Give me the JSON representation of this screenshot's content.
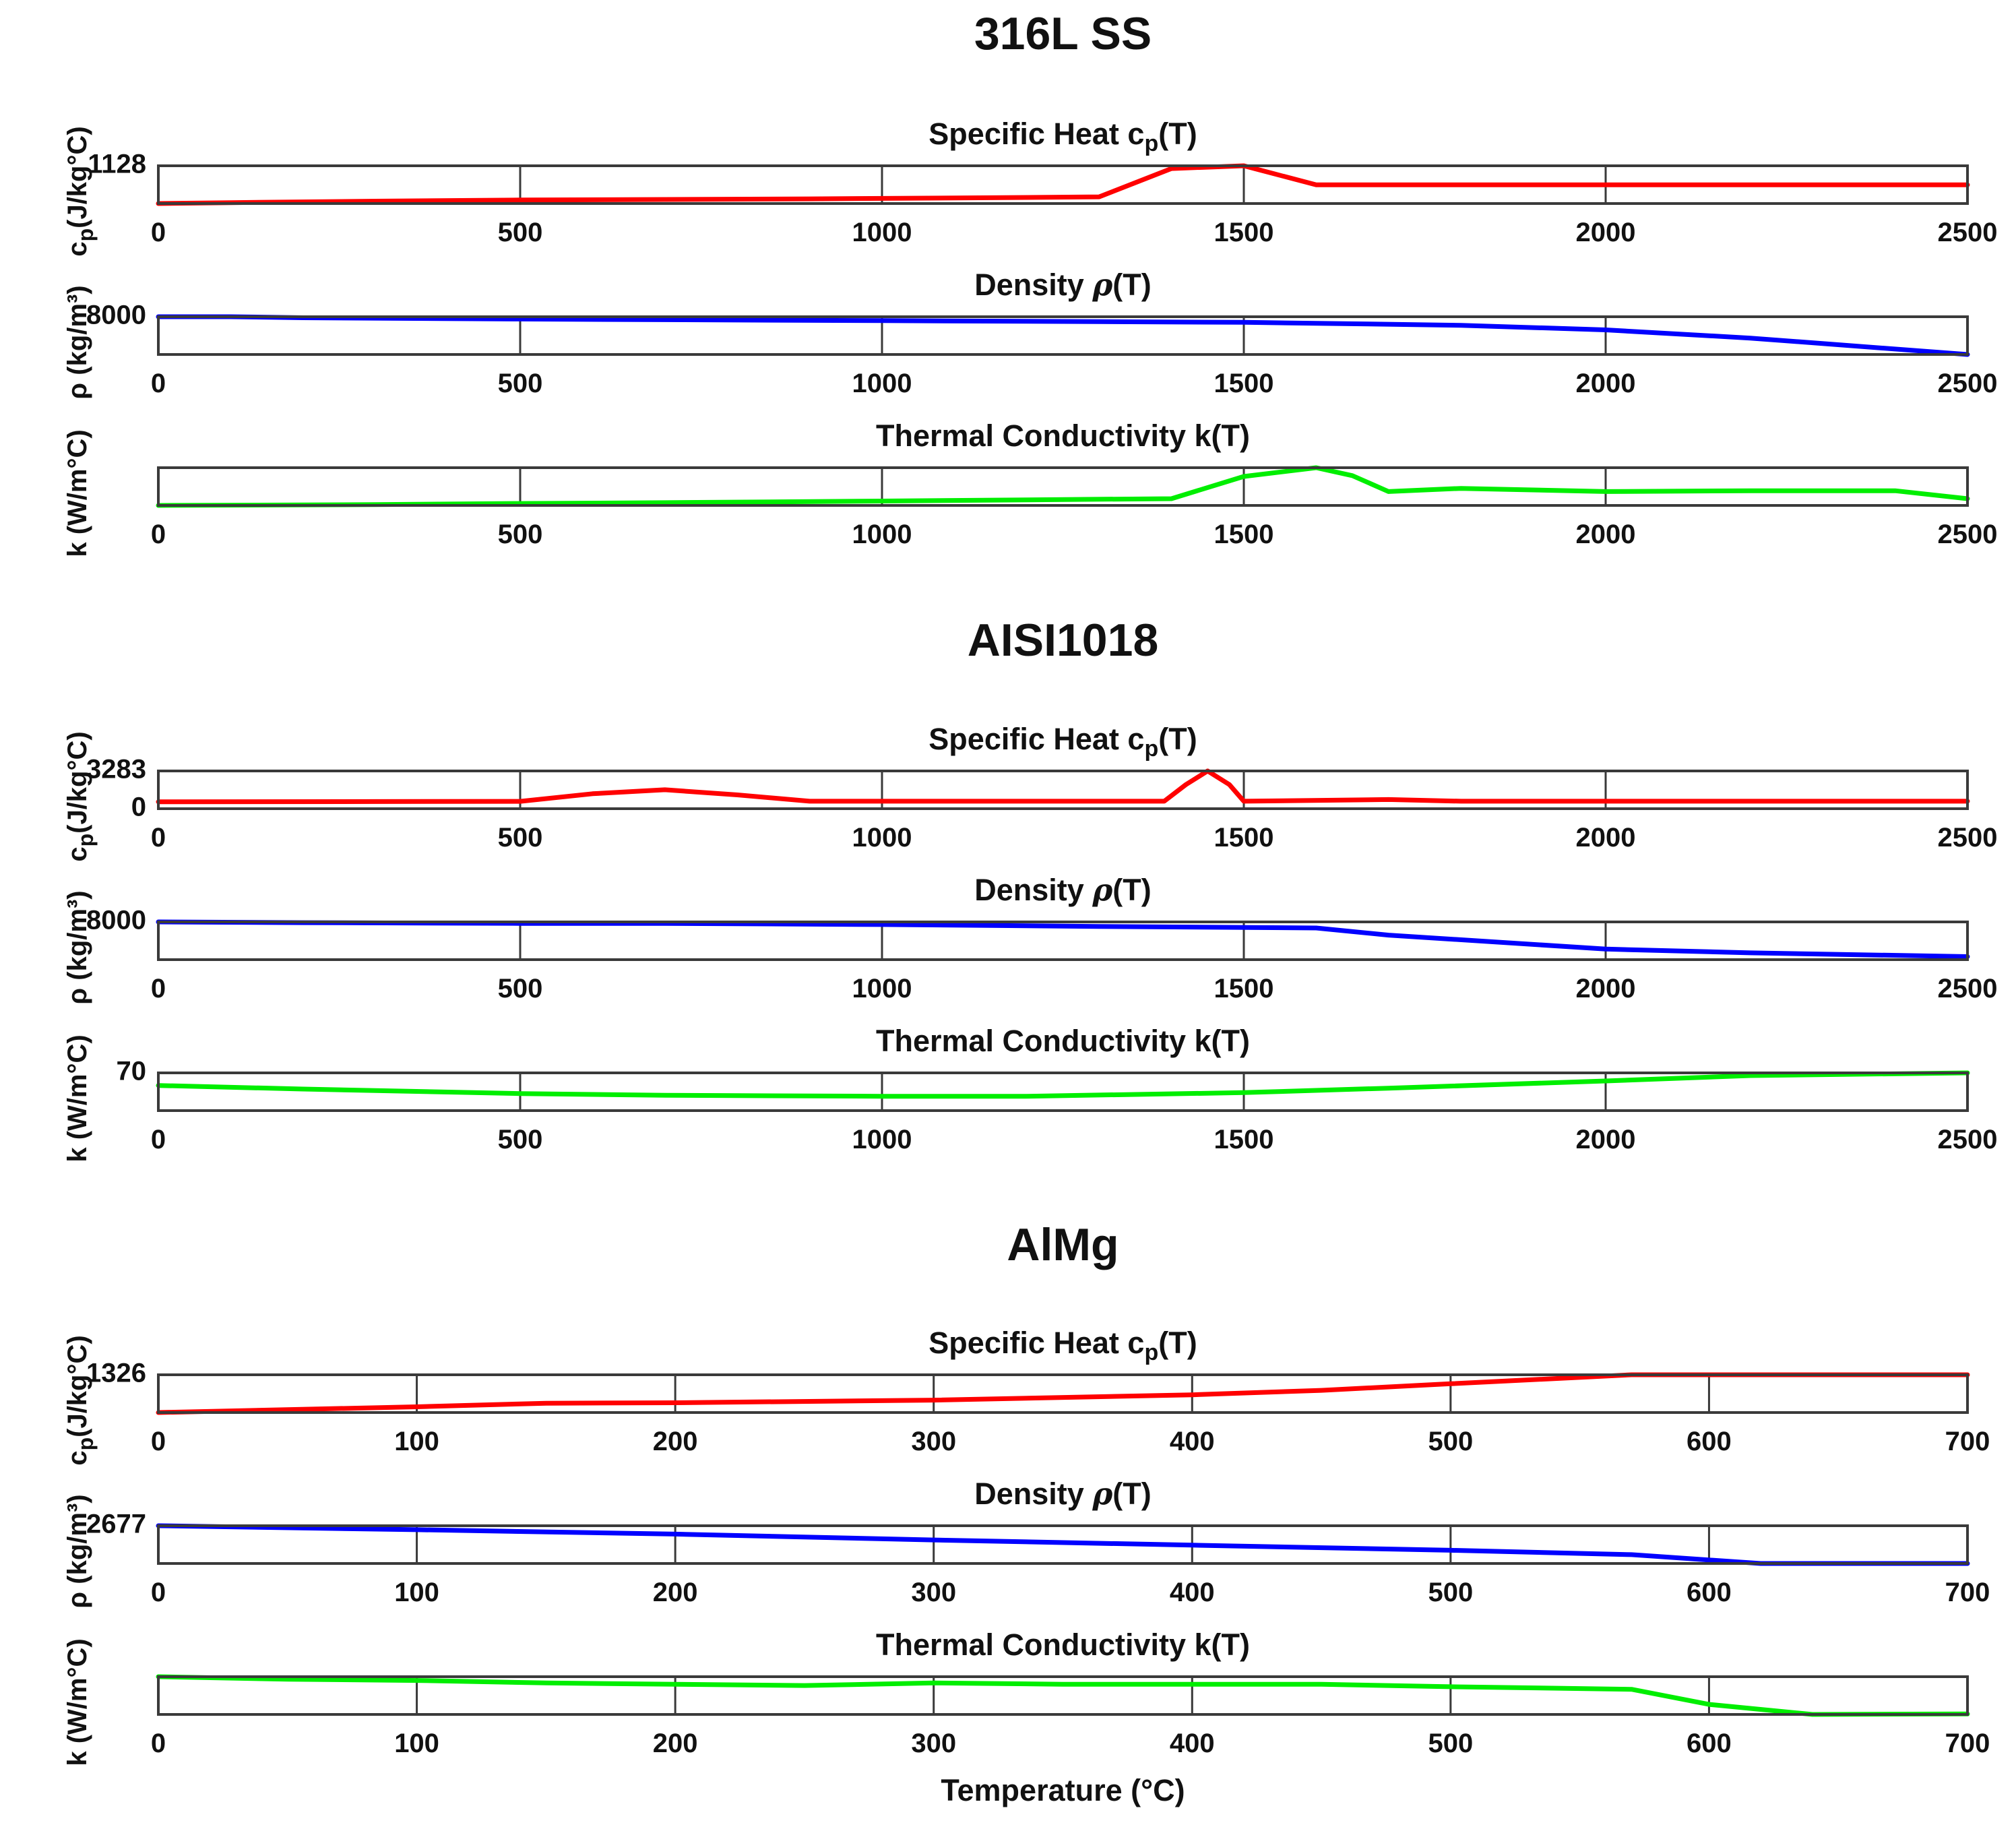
{
  "chart_data": [
    {
      "group_title": "316L SS",
      "panels": [
        {
          "type": "line",
          "title": "Specific Heat c",
          "title_sub": "p",
          "title_tail": "(T)",
          "ylabel": "c",
          "ylabel_sub": "p",
          "ylabel_tail": "(J/kg°C)",
          "xlim": [
            0,
            2500
          ],
          "ylim": [
            480,
            1128
          ],
          "xticks": [
            0,
            500,
            1000,
            1500,
            2000,
            2500
          ],
          "yticks": [
            1128
          ],
          "grid": true,
          "color": "#ff0000",
          "series": [
            {
              "name": "cp",
              "x": [
                0,
                100,
                300,
                500,
                700,
                900,
                1100,
                1300,
                1400,
                1500,
                1600,
                1700,
                1800,
                2000,
                2200,
                2500
              ],
              "y": [
                480,
                495,
                520,
                540,
                550,
                560,
                575,
                595,
                1080,
                1128,
                800,
                800,
                800,
                800,
                800,
                800
              ]
            }
          ]
        },
        {
          "type": "line",
          "title": "Density ",
          "title_sym": "ρ",
          "title_tail": "(T)",
          "ylabel": "ρ (kg/m³)",
          "xlim": [
            0,
            2500
          ],
          "ylim": [
            6850,
            8000
          ],
          "xticks": [
            0,
            500,
            1000,
            1500,
            2000,
            2500
          ],
          "yticks": [
            8000
          ],
          "grid": true,
          "color": "#0000ff",
          "series": [
            {
              "name": "rho",
              "x": [
                0,
                100,
                200,
                500,
                700,
                1000,
                1300,
                1500,
                1600,
                1800,
                2000,
                2200,
                2500
              ],
              "y": [
                8000,
                8000,
                7970,
                7930,
                7910,
                7880,
                7850,
                7830,
                7800,
                7740,
                7600,
                7350,
                6850
              ]
            }
          ]
        },
        {
          "type": "line",
          "title": "Thermal Conductivity k(T)",
          "ylabel": "k (W/m°C)",
          "xlim": [
            0,
            2500
          ],
          "ylim": [
            15,
            110
          ],
          "xticks": [
            0,
            500,
            1000,
            1500,
            2000,
            2500
          ],
          "yticks": [],
          "grid": true,
          "color": "#00ee00",
          "series": [
            {
              "name": "k",
              "x": [
                0,
                300,
                500,
                700,
                1000,
                1200,
                1400,
                1500,
                1600,
                1650,
                1700,
                1800,
                2000,
                2200,
                2400,
                2500
              ],
              "y": [
                15,
                17,
                20,
                22,
                26,
                29,
                32,
                88,
                110,
                90,
                50,
                58,
                50,
                52,
                52,
                32
              ]
            }
          ]
        }
      ]
    },
    {
      "group_title": "AISI1018",
      "panels": [
        {
          "type": "line",
          "title": "Specific Heat c",
          "title_sub": "p",
          "title_tail": "(T)",
          "ylabel": "c",
          "ylabel_sub": "p",
          "ylabel_tail": "(J/kg°C)",
          "xlim": [
            0,
            2500
          ],
          "ylim": [
            0,
            3283
          ],
          "xticks": [
            0,
            500,
            1000,
            1500,
            2000,
            2500
          ],
          "yticks": [
            0,
            3283
          ],
          "grid": true,
          "color": "#ff0000",
          "series": [
            {
              "name": "cp",
              "x": [
                0,
                300,
                500,
                600,
                700,
                800,
                900,
                1200,
                1390,
                1420,
                1450,
                1480,
                1500,
                1700,
                1800,
                2000,
                2500
              ],
              "y": [
                600,
                620,
                640,
                1300,
                1650,
                1200,
                650,
                650,
                650,
                2100,
                3283,
                2100,
                650,
                800,
                650,
                650,
                650
              ]
            }
          ]
        },
        {
          "type": "line",
          "title": "Density ",
          "title_sym": "ρ",
          "title_tail": "(T)",
          "ylabel": "ρ (kg/m³)",
          "xlim": [
            0,
            2500
          ],
          "ylim": [
            7000,
            8000
          ],
          "xticks": [
            0,
            500,
            1000,
            1500,
            2000,
            2500
          ],
          "yticks": [
            8000
          ],
          "grid": true,
          "color": "#0000ff",
          "series": [
            {
              "name": "rho",
              "x": [
                0,
                200,
                500,
                700,
                1000,
                1300,
                1600,
                1700,
                2000,
                2200,
                2500
              ],
              "y": [
                8000,
                7980,
                7960,
                7960,
                7930,
                7880,
                7840,
                7650,
                7280,
                7180,
                7080
              ]
            }
          ]
        },
        {
          "type": "line",
          "title": "Thermal Conductivity k(T)",
          "ylabel": "k (W/m°C)",
          "xlim": [
            0,
            2500
          ],
          "ylim": [
            28,
            70
          ],
          "xticks": [
            0,
            500,
            1000,
            1500,
            2000,
            2500
          ],
          "yticks": [
            70
          ],
          "grid": true,
          "color": "#00ee00",
          "series": [
            {
              "name": "k",
              "x": [
                0,
                200,
                500,
                700,
                1000,
                1200,
                1500,
                1700,
                2000,
                2200,
                2500
              ],
              "y": [
                56,
                52,
                47,
                45,
                44,
                44,
                48,
                53,
                61,
                67,
                70
              ]
            }
          ]
        }
      ]
    },
    {
      "group_title": "AlMg",
      "panels": [
        {
          "type": "line",
          "title": "Specific Heat c",
          "title_sub": "p",
          "title_tail": "(T)",
          "ylabel": "c",
          "ylabel_sub": "p",
          "ylabel_tail": "(J/kg°C)",
          "xlim": [
            0,
            700
          ],
          "ylim": [
            900,
            1326
          ],
          "xticks": [
            0,
            100,
            200,
            300,
            400,
            500,
            600,
            700
          ],
          "yticks": [
            1326
          ],
          "grid": true,
          "color": "#ff0000",
          "series": [
            {
              "name": "cp",
              "x": [
                0,
                100,
                150,
                200,
                300,
                400,
                450,
                500,
                570,
                600,
                700
              ],
              "y": [
                900,
                965,
                1005,
                1010,
                1040,
                1100,
                1150,
                1225,
                1326,
                1326,
                1326
              ]
            }
          ]
        },
        {
          "type": "line",
          "title": "Density ",
          "title_sym": "ρ",
          "title_tail": "(T)",
          "ylabel": "ρ (kg/m³)",
          "xlim": [
            0,
            700
          ],
          "ylim": [
            2420,
            2677
          ],
          "xticks": [
            0,
            100,
            200,
            300,
            400,
            500,
            600,
            700
          ],
          "yticks": [
            2677
          ],
          "grid": true,
          "color": "#0000ff",
          "series": [
            {
              "name": "rho",
              "x": [
                0,
                100,
                200,
                300,
                400,
                500,
                570,
                620,
                700
              ],
              "y": [
                2677,
                2650,
                2620,
                2580,
                2545,
                2510,
                2480,
                2420,
                2420
              ]
            }
          ]
        },
        {
          "type": "line",
          "title": "Thermal Conductivity k(T)",
          "ylabel": "k (W/m°C)",
          "xlim": [
            0,
            700
          ],
          "ylim": [
            90,
            240
          ],
          "xticks": [
            0,
            100,
            200,
            300,
            400,
            500,
            600,
            700
          ],
          "yticks": [],
          "grid": true,
          "color": "#00ee00",
          "series": [
            {
              "name": "k",
              "x": [
                0,
                50,
                100,
                150,
                200,
                250,
                300,
                350,
                400,
                450,
                500,
                570,
                600,
                640,
                700
              ],
              "y": [
                240,
                230,
                225,
                215,
                210,
                205,
                215,
                210,
                210,
                210,
                200,
                190,
                130,
                90,
                92
              ]
            }
          ]
        }
      ]
    }
  ],
  "xlabel": "Temperature (°C)"
}
